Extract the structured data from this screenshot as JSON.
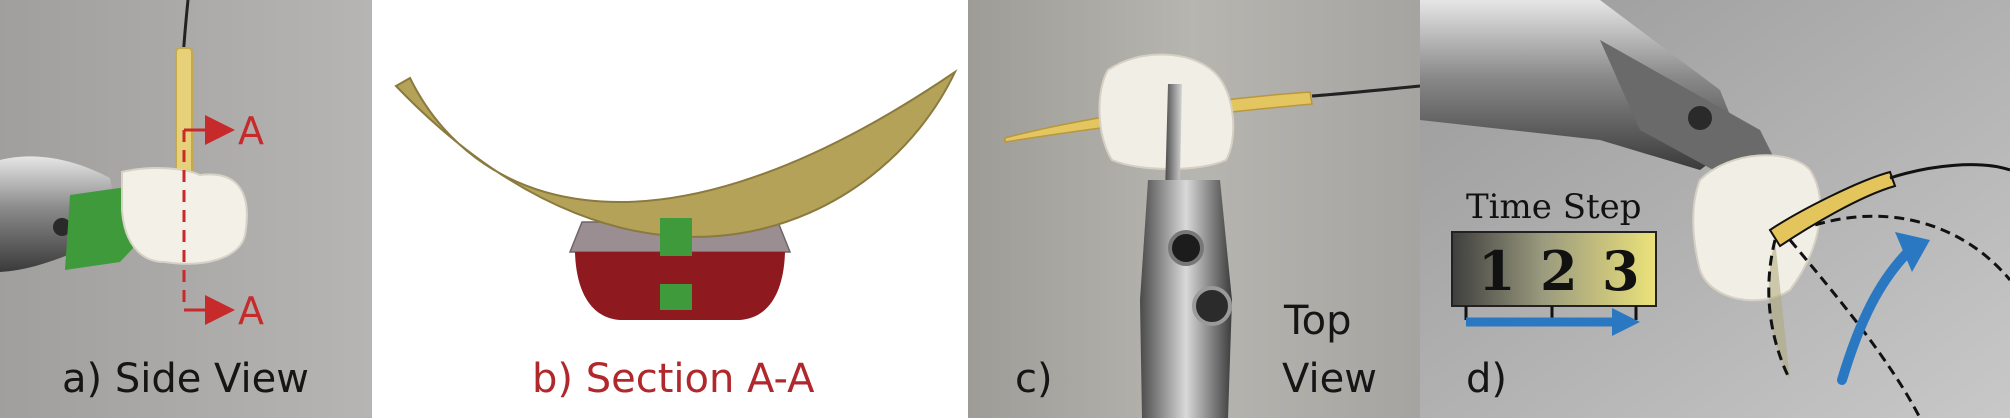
{
  "panels": {
    "a": {
      "caption": "a) Side View",
      "section_marker_top": "A",
      "section_marker_bottom": "A"
    },
    "b": {
      "caption": "b) Section A-A"
    },
    "c": {
      "caption": "c)",
      "view_label_line1": "Top",
      "view_label_line2": "View"
    },
    "d": {
      "caption": "d)",
      "time_step_title": "Time Step",
      "steps": [
        "1",
        "2",
        "3"
      ]
    }
  },
  "colors": {
    "accent_red": "#c62a2a",
    "caption_red": "#b0282c",
    "needle_gold": "#b5a259",
    "tissue_green": "#3f9a3c",
    "base_red": "#8e1a1f",
    "base_gray": "#9b8e93",
    "arrow_blue": "#2b78c2",
    "photo_gray": "#a7a7a5"
  },
  "icons": {
    "section_arrow": "red-dashed-section-arrow",
    "motion_arrow": "blue-curved-arrow",
    "timeline_arrow": "blue-timeline-arrow"
  }
}
